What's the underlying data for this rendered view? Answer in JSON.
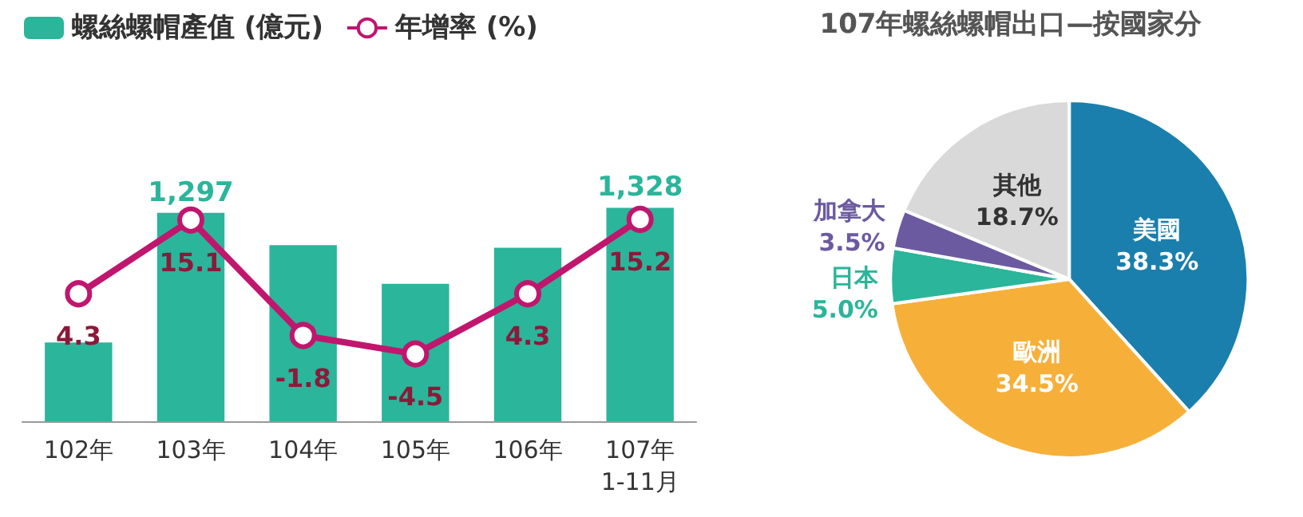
{
  "chart_data": [
    {
      "type": "bar",
      "tick_labels": "x",
      "categories": [
        "102年",
        "103年",
        "104年",
        "105年",
        "106年",
        "107年\n1-11月"
      ],
      "legend": "top",
      "series": [
        {
          "type": "bar",
          "name": "螺絲螺帽產值 (億元)",
          "color": "#2bb59a",
          "values": [
            490,
            1297,
            1095,
            855,
            1080,
            1328
          ],
          "value_labels": [
            null,
            "1,297",
            null,
            null,
            null,
            "1,328"
          ]
        },
        {
          "type": "line",
          "axis": "y2",
          "name": "年增率 (%)",
          "color": "#c0166e",
          "marker": "circle",
          "values": [
            4.3,
            15.1,
            -1.8,
            -4.5,
            4.3,
            15.2
          ],
          "value_labels": [
            "4.3",
            "15.1",
            "-1.8",
            "-4.5",
            "4.3",
            "15.2"
          ]
        }
      ]
    },
    {
      "type": "pie",
      "title": "107年螺絲螺帽出口—按國家分",
      "categories": [
        "美國",
        "歐洲",
        "日本",
        "加拿大",
        "其他"
      ],
      "values": [
        38.3,
        34.5,
        5.0,
        3.5,
        18.7
      ],
      "colors": [
        "#1a7fad",
        "#f6b03a",
        "#2bb59a",
        "#6c5aa0",
        "#d9d9d9"
      ],
      "value_labels": [
        "38.3%",
        "34.5%",
        "5.0%",
        "3.5%",
        "18.7%"
      ]
    }
  ]
}
